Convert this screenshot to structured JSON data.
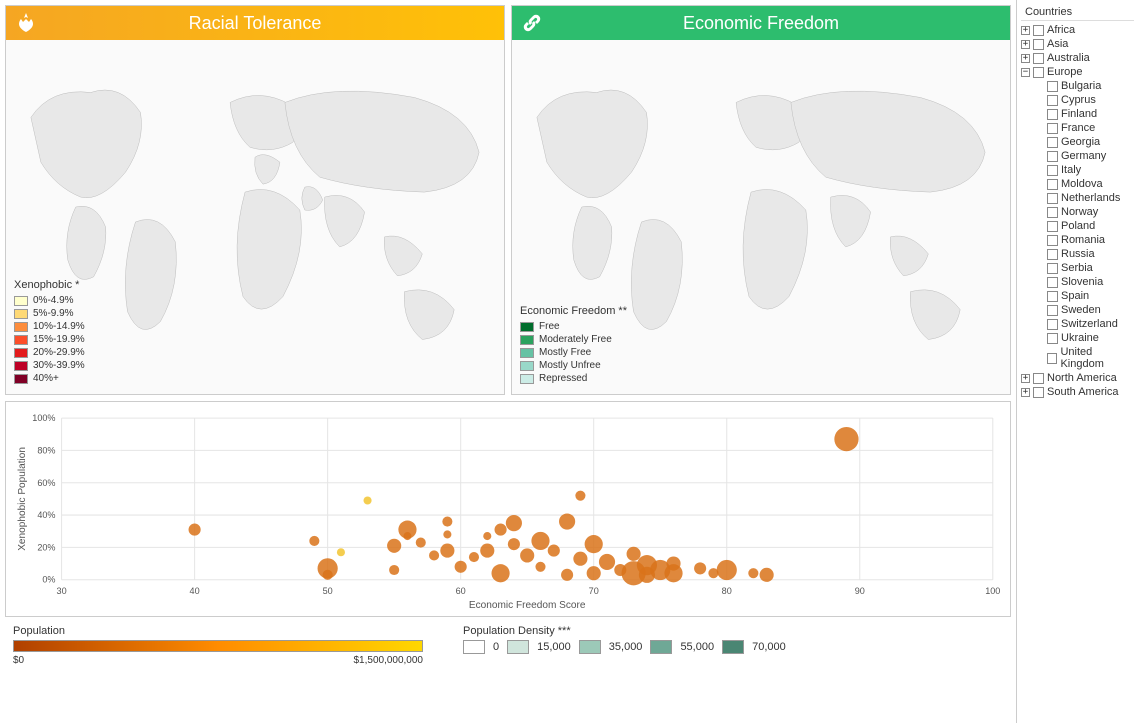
{
  "maps": {
    "left": {
      "title": "Racial Tolerance",
      "header_bg_gradient": [
        "#f5a623",
        "#ffc107"
      ],
      "icon": "hands-icon",
      "legend_title": "Xenophobic *",
      "legend": [
        {
          "label": "0%-4.9%",
          "color": "#ffffcc"
        },
        {
          "label": "5%-9.9%",
          "color": "#fed976"
        },
        {
          "label": "10%-14.9%",
          "color": "#fd8d3c"
        },
        {
          "label": "15%-19.9%",
          "color": "#fc4e2a"
        },
        {
          "label": "20%-29.9%",
          "color": "#e31a1c"
        },
        {
          "label": "30%-39.9%",
          "color": "#bd0026"
        },
        {
          "label": "40%+",
          "color": "#800026"
        }
      ]
    },
    "right": {
      "title": "Economic Freedom",
      "header_bg": "#2dbd6e",
      "icon": "link-icon",
      "legend_title": "Economic Freedom **",
      "legend": [
        {
          "label": "Free",
          "color": "#006d2c"
        },
        {
          "label": "Moderately Free",
          "color": "#2ca25f"
        },
        {
          "label": "Mostly Free",
          "color": "#66c2a4"
        },
        {
          "label": "Mostly Unfree",
          "color": "#99d8c9"
        },
        {
          "label": "Repressed",
          "color": "#ccece6"
        }
      ]
    }
  },
  "scatter": {
    "x_label": "Economic Freedom Score",
    "y_label": "Xenophobic Population",
    "xlim": [
      30,
      100
    ],
    "ylim": [
      0,
      100
    ],
    "x_ticks": [
      30,
      40,
      50,
      60,
      70,
      80,
      90,
      100
    ],
    "y_ticks": [
      0,
      20,
      40,
      60,
      80,
      100
    ],
    "y_tick_suffix": "%",
    "grid_color": "#e5e5e5",
    "points": [
      {
        "x": 40,
        "y": 31,
        "r": 6,
        "color": "#d9731a"
      },
      {
        "x": 49,
        "y": 24,
        "r": 5,
        "color": "#d9731a"
      },
      {
        "x": 50,
        "y": 7,
        "r": 10,
        "color": "#d9731a"
      },
      {
        "x": 50,
        "y": 3,
        "r": 5,
        "color": "#d9731a"
      },
      {
        "x": 51,
        "y": 17,
        "r": 4,
        "color": "#f2c430"
      },
      {
        "x": 53,
        "y": 49,
        "r": 4,
        "color": "#f2c430"
      },
      {
        "x": 55,
        "y": 21,
        "r": 7,
        "color": "#d9731a"
      },
      {
        "x": 55,
        "y": 6,
        "r": 5,
        "color": "#d9731a"
      },
      {
        "x": 56,
        "y": 27,
        "r": 4,
        "color": "#d9731a"
      },
      {
        "x": 56,
        "y": 31,
        "r": 9,
        "color": "#d9731a"
      },
      {
        "x": 57,
        "y": 23,
        "r": 5,
        "color": "#d9731a"
      },
      {
        "x": 58,
        "y": 15,
        "r": 5,
        "color": "#d9731a"
      },
      {
        "x": 59,
        "y": 36,
        "r": 5,
        "color": "#d9731a"
      },
      {
        "x": 59,
        "y": 28,
        "r": 4,
        "color": "#d9731a"
      },
      {
        "x": 59,
        "y": 18,
        "r": 7,
        "color": "#d9731a"
      },
      {
        "x": 60,
        "y": 8,
        "r": 6,
        "color": "#d9731a"
      },
      {
        "x": 61,
        "y": 14,
        "r": 5,
        "color": "#d9731a"
      },
      {
        "x": 62,
        "y": 27,
        "r": 4,
        "color": "#d9731a"
      },
      {
        "x": 62,
        "y": 18,
        "r": 7,
        "color": "#d9731a"
      },
      {
        "x": 63,
        "y": 4,
        "r": 9,
        "color": "#d9731a"
      },
      {
        "x": 63,
        "y": 31,
        "r": 6,
        "color": "#d9731a"
      },
      {
        "x": 64,
        "y": 35,
        "r": 8,
        "color": "#d9731a"
      },
      {
        "x": 64,
        "y": 22,
        "r": 6,
        "color": "#d9731a"
      },
      {
        "x": 65,
        "y": 15,
        "r": 7,
        "color": "#d9731a"
      },
      {
        "x": 66,
        "y": 24,
        "r": 9,
        "color": "#d9731a"
      },
      {
        "x": 66,
        "y": 8,
        "r": 5,
        "color": "#d9731a"
      },
      {
        "x": 67,
        "y": 18,
        "r": 6,
        "color": "#d9731a"
      },
      {
        "x": 68,
        "y": 36,
        "r": 8,
        "color": "#d9731a"
      },
      {
        "x": 68,
        "y": 3,
        "r": 6,
        "color": "#d9731a"
      },
      {
        "x": 69,
        "y": 13,
        "r": 7,
        "color": "#d9731a"
      },
      {
        "x": 69,
        "y": 52,
        "r": 5,
        "color": "#d9731a"
      },
      {
        "x": 70,
        "y": 22,
        "r": 9,
        "color": "#d9731a"
      },
      {
        "x": 70,
        "y": 4,
        "r": 7,
        "color": "#d9731a"
      },
      {
        "x": 71,
        "y": 11,
        "r": 8,
        "color": "#d9731a"
      },
      {
        "x": 72,
        "y": 6,
        "r": 6,
        "color": "#d9731a"
      },
      {
        "x": 73,
        "y": 16,
        "r": 7,
        "color": "#d9731a"
      },
      {
        "x": 73,
        "y": 4,
        "r": 12,
        "color": "#d9731a"
      },
      {
        "x": 74,
        "y": 9,
        "r": 10,
        "color": "#d9731a"
      },
      {
        "x": 74,
        "y": 3,
        "r": 8,
        "color": "#d9731a"
      },
      {
        "x": 75,
        "y": 6,
        "r": 10,
        "color": "#d9731a"
      },
      {
        "x": 76,
        "y": 4,
        "r": 9,
        "color": "#d9731a"
      },
      {
        "x": 76,
        "y": 10,
        "r": 7,
        "color": "#d9731a"
      },
      {
        "x": 78,
        "y": 7,
        "r": 6,
        "color": "#d9731a"
      },
      {
        "x": 79,
        "y": 4,
        "r": 5,
        "color": "#d9731a"
      },
      {
        "x": 80,
        "y": 6,
        "r": 10,
        "color": "#d9731a"
      },
      {
        "x": 82,
        "y": 4,
        "r": 5,
        "color": "#d9731a"
      },
      {
        "x": 83,
        "y": 3,
        "r": 7,
        "color": "#d9731a"
      },
      {
        "x": 89,
        "y": 87,
        "r": 12,
        "color": "#d9731a"
      }
    ]
  },
  "population_gradient": {
    "title": "Population",
    "min_label": "$0",
    "max_label": "$1,500,000,000",
    "colors": [
      "#b04000",
      "#ff8c00",
      "#ffd700"
    ]
  },
  "density_legend": {
    "title": "Population Density ***",
    "items": [
      {
        "label": "0",
        "color": "#ffffff"
      },
      {
        "label": "15,000",
        "color": "#d0e5dc"
      },
      {
        "label": "35,000",
        "color": "#9cc9b8"
      },
      {
        "label": "55,000",
        "color": "#6fa896"
      },
      {
        "label": "70,000",
        "color": "#4a8673"
      }
    ]
  },
  "sidebar": {
    "title": "Countries",
    "nodes": [
      {
        "label": "Africa",
        "expanded": false,
        "children": []
      },
      {
        "label": "Asia",
        "expanded": false,
        "children": []
      },
      {
        "label": "Australia",
        "expanded": false,
        "children": []
      },
      {
        "label": "Europe",
        "expanded": true,
        "children": [
          "Bulgaria",
          "Cyprus",
          "Finland",
          "France",
          "Georgia",
          "Germany",
          "Italy",
          "Moldova",
          "Netherlands",
          "Norway",
          "Poland",
          "Romania",
          "Russia",
          "Serbia",
          "Slovenia",
          "Spain",
          "Sweden",
          "Switzerland",
          "Ukraine",
          "United Kingdom"
        ]
      },
      {
        "label": "North America",
        "expanded": false,
        "children": []
      },
      {
        "label": "South America",
        "expanded": false,
        "children": []
      }
    ]
  },
  "map_land_color": "#e8e8e8",
  "map_border_color": "#bbbbbb"
}
